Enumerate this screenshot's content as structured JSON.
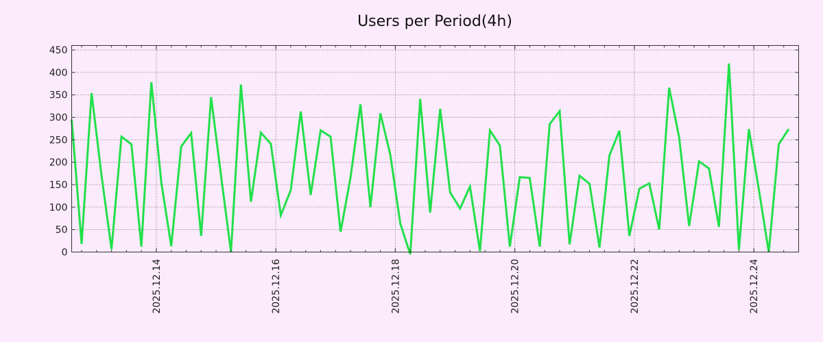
{
  "chart_data": {
    "type": "line",
    "title": "Users per Period(4h)",
    "xlabel": "",
    "ylabel": "",
    "ylim": [
      0,
      460
    ],
    "yticks": [
      0,
      50,
      100,
      150,
      200,
      250,
      300,
      350,
      400,
      450
    ],
    "xlim": [
      "2025.12.12 14:00",
      "2025.12.24 18:00"
    ],
    "xtick_labels": [
      "2025.12.14",
      "2025.12.16",
      "2025.12.18",
      "2025.12.20",
      "2025.12.22",
      "2025.12.24"
    ],
    "grid": true,
    "series": [
      {
        "color": "#22e04a",
        "x_start": "2025.12.12 14:00",
        "interval_hours": 4,
        "values": [
          295,
          18,
          354,
          170,
          6,
          257,
          240,
          12,
          378,
          155,
          13,
          235,
          265,
          36,
          345,
          170,
          0,
          373,
          112,
          266,
          241,
          82,
          138,
          313,
          127,
          271,
          257,
          45,
          166,
          329,
          100,
          309,
          216,
          63,
          -5,
          341,
          88,
          319,
          133,
          97,
          146,
          2,
          271,
          237,
          12,
          167,
          165,
          12,
          285,
          314,
          17,
          170,
          152,
          10,
          215,
          270,
          36,
          141,
          153,
          50,
          366,
          255,
          58,
          202,
          186,
          56,
          420,
          5,
          274,
          140,
          0,
          240,
          274
        ]
      }
    ]
  }
}
